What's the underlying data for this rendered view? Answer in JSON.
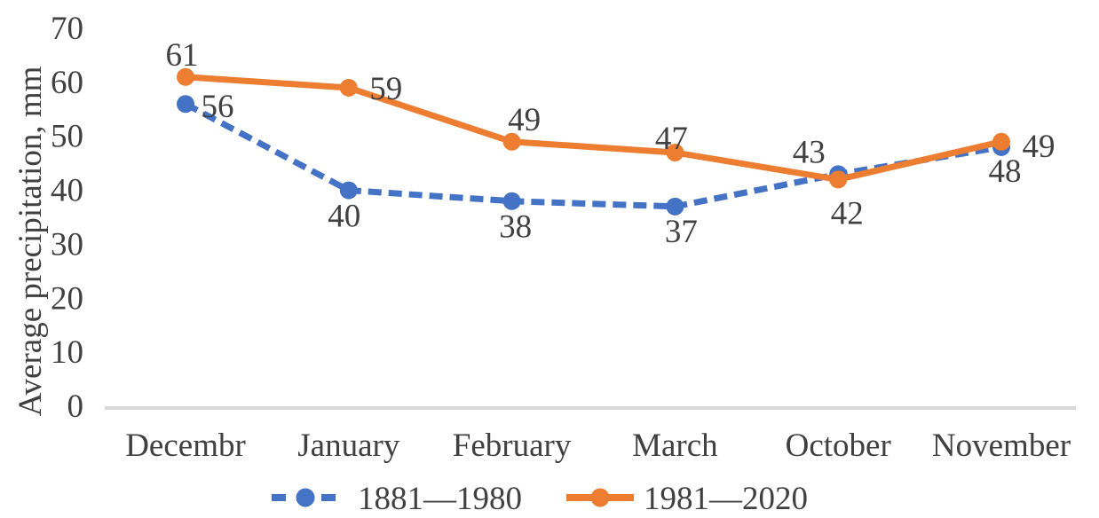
{
  "chart_data": {
    "type": "line",
    "title": "",
    "ylabel": "Average precipitation, mm",
    "xlabel": "",
    "categories": [
      "Decembr",
      "January",
      "February",
      "March",
      "October",
      "November"
    ],
    "ylim": [
      0,
      70
    ],
    "ytick_step": 10,
    "yticks": [
      0,
      10,
      20,
      30,
      40,
      50,
      60,
      70
    ],
    "grid": false,
    "legend_position": "bottom-center",
    "series": [
      {
        "name": "1881—1980",
        "color": "#4472C4",
        "line_style": "dashed",
        "marker": "circle",
        "values": [
          56,
          40,
          38,
          37,
          43,
          48
        ],
        "label_placement": [
          [
            36,
            2
          ],
          [
            -5,
            28
          ],
          [
            4,
            28
          ],
          [
            7,
            27
          ],
          [
            -33,
            -26
          ],
          [
            4,
            26
          ]
        ]
      },
      {
        "name": "1981—2020",
        "color": "#ED7D31",
        "line_style": "solid",
        "marker": "circle",
        "values": [
          61,
          59,
          49,
          47,
          42,
          49
        ],
        "label_placement": [
          [
            -4,
            -26
          ],
          [
            42,
            0
          ],
          [
            14,
            -26
          ],
          [
            -4,
            -17
          ],
          [
            10,
            37
          ],
          [
            42,
            4
          ]
        ]
      }
    ],
    "colors": {
      "axis_line": "#D9D9D9",
      "text": "#404040"
    }
  }
}
